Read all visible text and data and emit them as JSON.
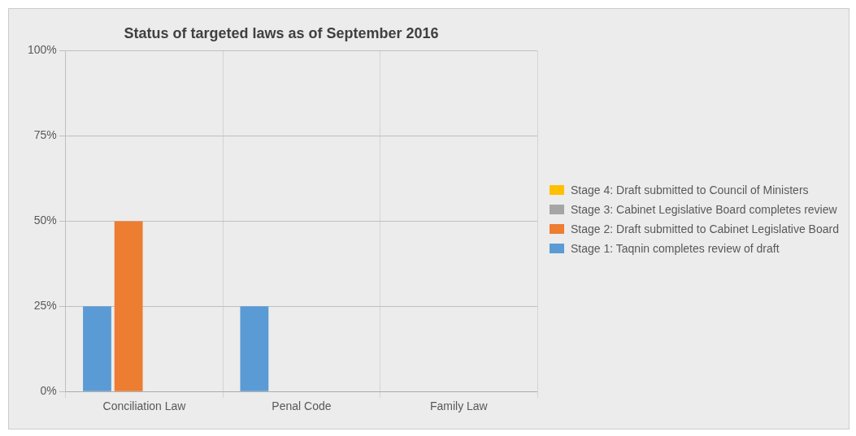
{
  "chart_data": {
    "type": "bar",
    "title": "Status of targeted laws as of September 2016",
    "categories": [
      "Conciliation Law",
      "Penal Code",
      "Family Law"
    ],
    "series": [
      {
        "name": "Stage  1: Taqnin completes  review of draft",
        "color": "#5b9bd5",
        "values": [
          25,
          25,
          0
        ]
      },
      {
        "name": "Stage  2: Draft submitted to Cabinet Legislative Board",
        "color": "#ed7d31",
        "values": [
          50,
          0,
          0
        ]
      },
      {
        "name": "Stage  3: Cabinet Legislative Board completes review",
        "color": "#a5a5a5",
        "values": [
          0,
          0,
          0
        ]
      },
      {
        "name": "Stage  4: Draft submitted to Council of Ministers",
        "color": "#ffc000",
        "values": [
          0,
          0,
          0
        ]
      }
    ],
    "ylim": [
      0,
      100
    ],
    "yticks": [
      {
        "value": 0,
        "label": "0%"
      },
      {
        "value": 25,
        "label": "25%"
      },
      {
        "value": 50,
        "label": "50%"
      },
      {
        "value": 75,
        "label": "75%"
      },
      {
        "value": 100,
        "label": "100%"
      }
    ],
    "grid": true,
    "legend": "right"
  }
}
